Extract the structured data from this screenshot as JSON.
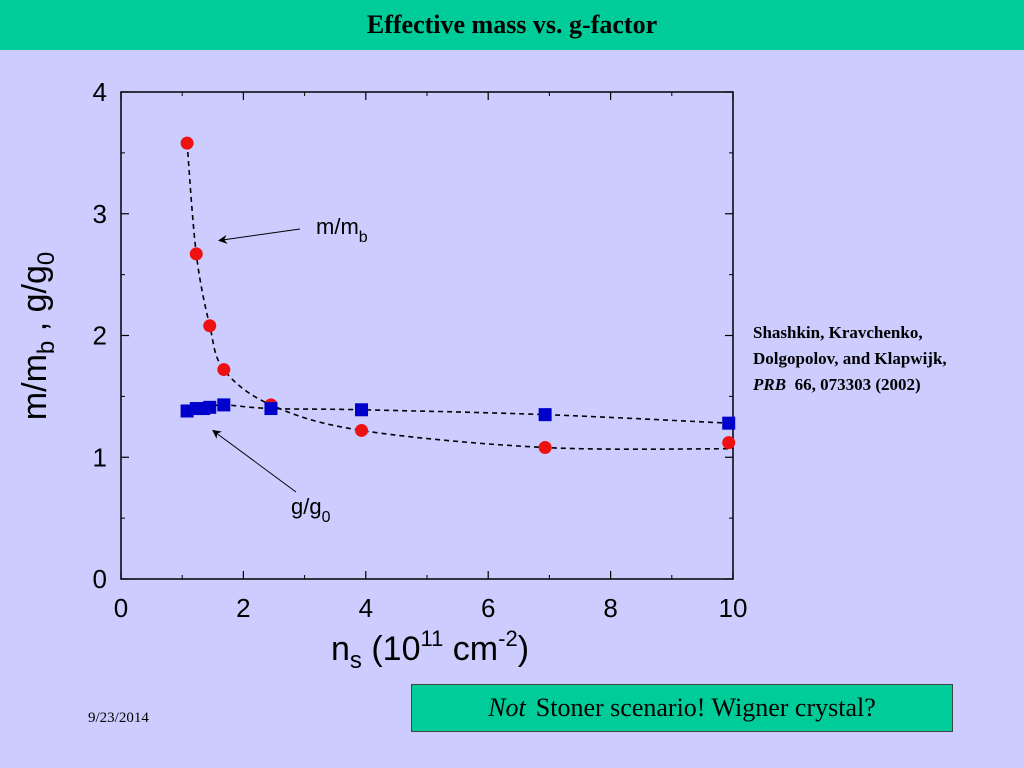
{
  "slide": {
    "title": "Effective mass vs. g-factor",
    "date": "9/23/2014"
  },
  "citation": {
    "line1": "Shashkin, Kravchenko,",
    "line2": "Dolgopolov, and Klapwijk,",
    "journal": "PRB",
    "ref": "66, 073303 (2002)"
  },
  "callout": {
    "emphasis": "Not",
    "text": "Stoner scenario!  Wigner crystal?"
  },
  "colors": {
    "title_bar": "#00cc99",
    "background": "#ccccff",
    "mass_series": "#ee1111",
    "g_series": "#0000cc"
  },
  "chart_data": {
    "type": "scatter",
    "xlabel": "n_s (10^11 cm^-2)",
    "ylabel": "m/m_b , g/g_0",
    "xlim": [
      0,
      10
    ],
    "ylim": [
      0,
      4
    ],
    "x_ticks": [
      "0",
      "2",
      "4",
      "6",
      "8",
      "10"
    ],
    "y_ticks": [
      "0",
      "1",
      "2",
      "3",
      "4"
    ],
    "grid": false,
    "series": [
      {
        "name": "m/m_b",
        "marker": "circle",
        "color": "#ee1111",
        "points": [
          [
            1.08,
            3.58
          ],
          [
            1.23,
            2.67
          ],
          [
            1.45,
            2.08
          ],
          [
            1.68,
            1.72
          ],
          [
            2.45,
            1.43
          ],
          [
            3.93,
            1.22
          ],
          [
            6.93,
            1.08
          ],
          [
            9.93,
            1.12
          ]
        ]
      },
      {
        "name": "g/g_0",
        "marker": "square",
        "color": "#0000cc",
        "points": [
          [
            1.08,
            1.38
          ],
          [
            1.23,
            1.4
          ],
          [
            1.35,
            1.4
          ],
          [
            1.45,
            1.41
          ],
          [
            1.68,
            1.43
          ],
          [
            2.45,
            1.4
          ],
          [
            3.93,
            1.39
          ],
          [
            6.93,
            1.35
          ],
          [
            9.93,
            1.28
          ]
        ]
      }
    ],
    "annotations": [
      {
        "label_main": "m/m",
        "label_sub": "b",
        "points_to": [
          1.6,
          2.78
        ]
      },
      {
        "label_main": "g/g",
        "label_sub": "0",
        "points_to": [
          1.5,
          1.22
        ]
      }
    ]
  }
}
